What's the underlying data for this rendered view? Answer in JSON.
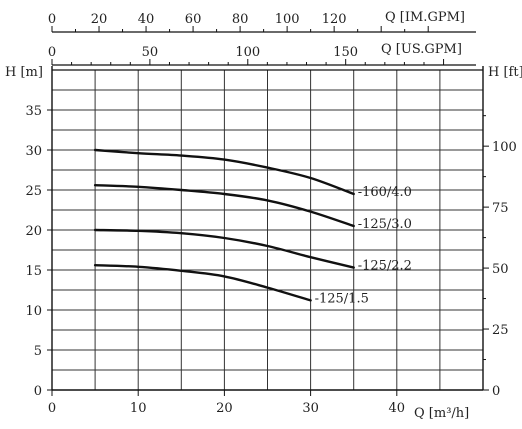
{
  "chart_data": {
    "type": "line",
    "x_axis": {
      "label": "Q [m³/h]",
      "ticks": [
        "0",
        "10",
        "20",
        "30",
        "40"
      ],
      "range": [
        0,
        50
      ]
    },
    "y_left_axis": {
      "label": "H [m]",
      "ticks": [
        "0",
        "5",
        "10",
        "15",
        "20",
        "25",
        "30",
        "35"
      ],
      "range": [
        0,
        40
      ]
    },
    "y_right_axis": {
      "label": "H [ft]",
      "ticks": [
        "0",
        "25",
        "50",
        "75",
        "100"
      ]
    },
    "top_axis_us": {
      "label": "Q [US.GPM]",
      "ticks": [
        "0",
        "50",
        "100",
        "150"
      ]
    },
    "top_axis_im": {
      "label": "Q [IM.GPM]",
      "ticks": [
        "0",
        "20",
        "40",
        "60",
        "80",
        "100",
        "120"
      ]
    },
    "grid": true,
    "series": [
      {
        "name": "-160/4.0",
        "x": [
          5,
          10,
          15,
          20,
          25,
          30,
          35
        ],
        "y": [
          30,
          29.6,
          29.3,
          28.8,
          27.8,
          26.5,
          24.5
        ]
      },
      {
        "name": "-125/3.0",
        "x": [
          5,
          10,
          15,
          20,
          25,
          30,
          35
        ],
        "y": [
          25.6,
          25.4,
          25.0,
          24.5,
          23.7,
          22.3,
          20.5
        ]
      },
      {
        "name": "-125/2.2",
        "x": [
          5,
          10,
          15,
          20,
          25,
          30,
          35
        ],
        "y": [
          20,
          19.9,
          19.6,
          19.0,
          18.0,
          16.6,
          15.3
        ]
      },
      {
        "name": "-125/1.5",
        "x": [
          5,
          10,
          15,
          20,
          25,
          30
        ],
        "y": [
          15.6,
          15.4,
          14.9,
          14.2,
          12.8,
          11.2
        ]
      }
    ]
  }
}
